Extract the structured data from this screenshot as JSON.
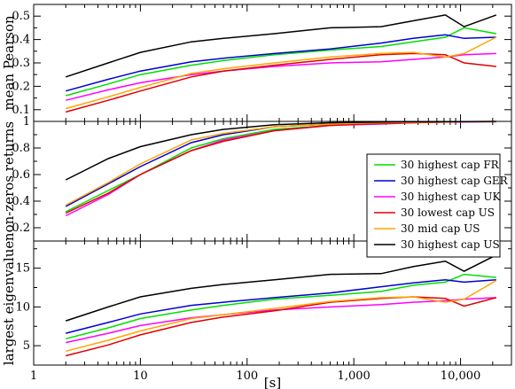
{
  "chart_data": {
    "type": "line",
    "x_scale": "log",
    "xlabel": "[s]",
    "xlim": [
      1,
      30000
    ],
    "x_tick_labels": [
      "1",
      "10",
      "100",
      "1,000",
      "10,000"
    ],
    "x": [
      2,
      5,
      10,
      30,
      60,
      180,
      600,
      1800,
      3600,
      7200,
      10800,
      21600
    ],
    "series_styles": [
      {
        "name": "30 highest cap FR",
        "color": "#00e000"
      },
      {
        "name": "30 highest cap GER",
        "color": "#0000d0"
      },
      {
        "name": "30 highest cap UK",
        "color": "#ff00ff"
      },
      {
        "name": "30 lowest cap US",
        "color": "#e00000"
      },
      {
        "name": "30 mid cap US",
        "color": "#ffa500"
      },
      {
        "name": "30 highest cap US",
        "color": "#000000"
      }
    ],
    "legend": {
      "placement": "middle-right",
      "panel": 1
    },
    "panels": [
      {
        "ylabel": "mean Pearson",
        "ylim": [
          0.05,
          0.55
        ],
        "yticks": [
          0.1,
          0.2,
          0.3,
          0.4,
          0.5
        ],
        "y_tick_labels": [
          "0.1",
          "0.2",
          "0.3",
          "0.4",
          "0.5"
        ],
        "series": [
          {
            "name": "30 highest cap FR",
            "values": [
              0.16,
              0.21,
              0.25,
              0.29,
              0.31,
              0.335,
              0.355,
              0.37,
              0.39,
              0.41,
              0.45,
              0.425
            ]
          },
          {
            "name": "30 highest cap GER",
            "values": [
              0.18,
              0.23,
              0.265,
              0.305,
              0.32,
              0.34,
              0.36,
              0.385,
              0.405,
              0.42,
              0.405,
              0.41
            ]
          },
          {
            "name": "30 highest cap UK",
            "values": [
              0.14,
              0.185,
              0.215,
              0.25,
              0.265,
              0.285,
              0.3,
              0.305,
              0.315,
              0.325,
              0.335,
              0.34
            ]
          },
          {
            "name": "30 lowest cap US",
            "values": [
              0.09,
              0.14,
              0.18,
              0.24,
              0.265,
              0.29,
              0.315,
              0.335,
              0.34,
              0.335,
              0.3,
              0.285
            ]
          },
          {
            "name": "30 mid cap US",
            "values": [
              0.105,
              0.155,
              0.195,
              0.255,
              0.275,
              0.3,
              0.325,
              0.34,
              0.345,
              0.325,
              0.34,
              0.41
            ]
          },
          {
            "name": "30 highest cap US",
            "values": [
              0.24,
              0.3,
              0.345,
              0.39,
              0.405,
              0.425,
              0.45,
              0.455,
              0.48,
              0.505,
              0.455,
              0.505
            ]
          }
        ]
      },
      {
        "ylabel": "non-zeros returns",
        "ylim": [
          0.1,
          1.0
        ],
        "yticks": [
          0.2,
          0.4,
          0.6,
          0.8,
          1.0
        ],
        "y_tick_labels": [
          "0.2",
          "0.4",
          "0.6",
          "0.8",
          "1"
        ],
        "series": [
          {
            "name": "30 highest cap FR",
            "values": [
              0.32,
              0.48,
              0.6,
              0.8,
              0.87,
              0.94,
              0.97,
              0.985,
              0.99,
              0.995,
              0.997,
              0.998
            ]
          },
          {
            "name": "30 highest cap GER",
            "values": [
              0.36,
              0.53,
              0.66,
              0.84,
              0.9,
              0.96,
              0.98,
              0.99,
              0.995,
              0.997,
              0.998,
              0.999
            ]
          },
          {
            "name": "30 highest cap UK",
            "values": [
              0.29,
              0.45,
              0.6,
              0.78,
              0.86,
              0.93,
              0.97,
              0.98,
              0.99,
              0.995,
              0.996,
              0.997
            ]
          },
          {
            "name": "30 lowest cap US",
            "values": [
              0.31,
              0.46,
              0.6,
              0.78,
              0.85,
              0.93,
              0.97,
              0.985,
              0.99,
              0.995,
              0.997,
              0.998
            ]
          },
          {
            "name": "30 mid cap US",
            "values": [
              0.37,
              0.54,
              0.68,
              0.86,
              0.91,
              0.96,
              0.98,
              0.99,
              0.995,
              0.997,
              0.998,
              0.999
            ]
          },
          {
            "name": "30 highest cap US",
            "values": [
              0.56,
              0.72,
              0.81,
              0.9,
              0.94,
              0.975,
              0.99,
              0.995,
              0.998,
              0.999,
              0.999,
              1.0
            ]
          }
        ]
      },
      {
        "ylabel": "largest eigenvalue",
        "ylim": [
          2.5,
          18.5
        ],
        "yticks": [
          5,
          10,
          15
        ],
        "y_tick_labels": [
          "5",
          "10",
          "15"
        ],
        "series": [
          {
            "name": "30 highest cap FR",
            "values": [
              5.9,
              7.3,
              8.5,
              9.6,
              10.2,
              11.0,
              11.5,
              12.0,
              12.8,
              13.2,
              14.2,
              13.8
            ]
          },
          {
            "name": "30 highest cap GER",
            "values": [
              6.6,
              8.0,
              9.1,
              10.2,
              10.6,
              11.2,
              11.8,
              12.6,
              13.1,
              13.5,
              13.2,
              13.5
            ]
          },
          {
            "name": "30 highest cap UK",
            "values": [
              5.4,
              6.6,
              7.6,
              8.6,
              9.0,
              9.6,
              10.0,
              10.3,
              10.6,
              10.8,
              11.0,
              11.2
            ]
          },
          {
            "name": "30 lowest cap US",
            "values": [
              3.7,
              5.1,
              6.4,
              8.0,
              8.7,
              9.5,
              10.6,
              11.1,
              11.3,
              11.1,
              10.1,
              11.2
            ]
          },
          {
            "name": "30 mid cap US",
            "values": [
              4.3,
              5.7,
              6.9,
              8.5,
              9.0,
              9.8,
              10.7,
              11.2,
              11.3,
              10.6,
              11.0,
              13.4
            ]
          },
          {
            "name": "30 highest cap US",
            "values": [
              8.2,
              10.0,
              11.3,
              12.4,
              12.9,
              13.5,
              14.2,
              14.3,
              15.2,
              15.9,
              14.6,
              16.7
            ]
          }
        ]
      }
    ]
  }
}
